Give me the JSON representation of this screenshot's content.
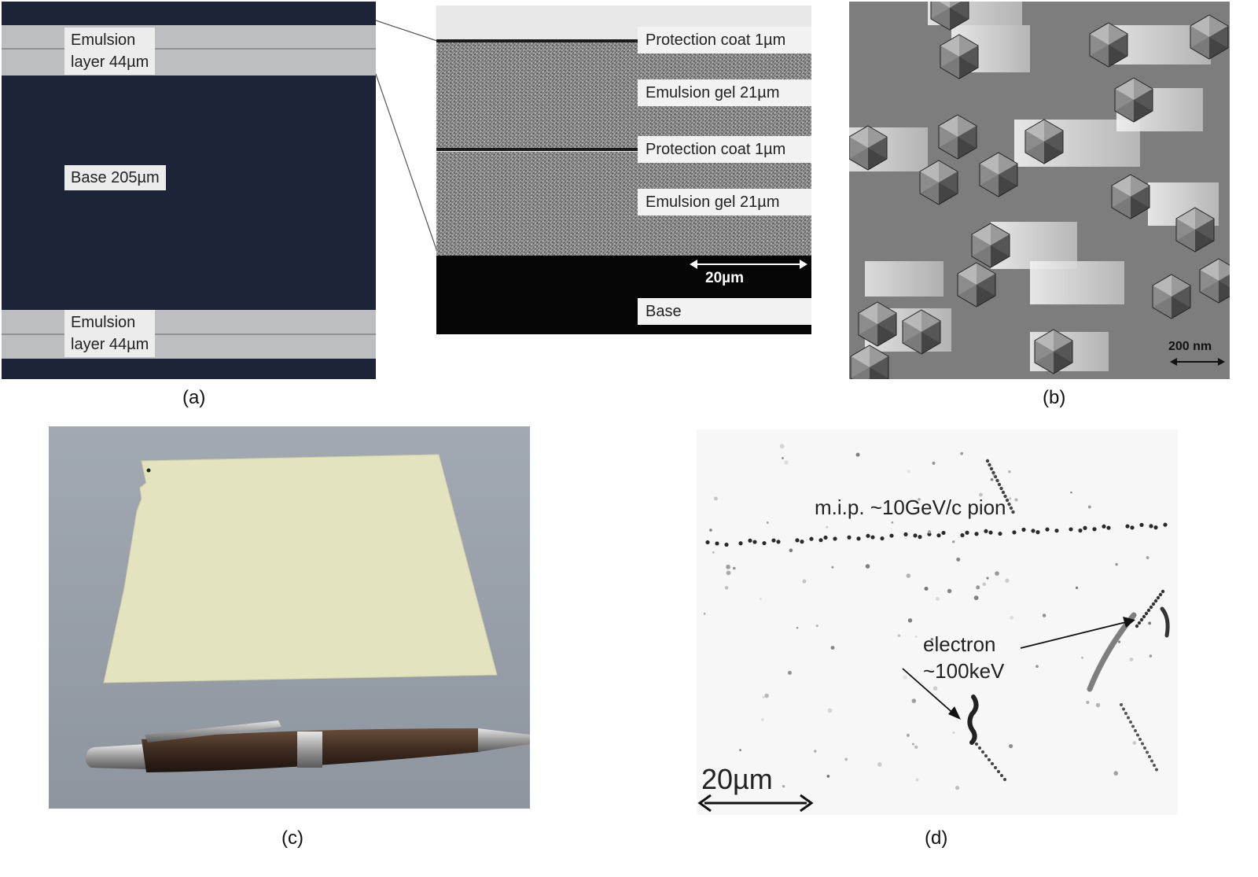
{
  "panel_a": {
    "caption": "(a)",
    "left_labels": {
      "top_line1": "Emulsion",
      "top_line2": "layer 44µm",
      "base": "Base 205µm",
      "bottom_line1": "Emulsion",
      "bottom_line2": "layer 44µm"
    },
    "right_labels": {
      "protection1": "Protection coat 1µm",
      "gel1": "Emulsion gel   21µm",
      "protection2": "Protection coat 1µm",
      "gel2": "Emulsion gel   21µm",
      "scale": "20µm",
      "base": "Base"
    }
  },
  "panel_b": {
    "caption": "(b)",
    "scale": "200 nm"
  },
  "panel_c": {
    "caption": "(c)"
  },
  "panel_d": {
    "caption": "(d)",
    "track_label": "m.i.p. ~10GeV/c pion",
    "electron_line1": "electron",
    "electron_line2": "~100keV",
    "scale": "20µm"
  }
}
